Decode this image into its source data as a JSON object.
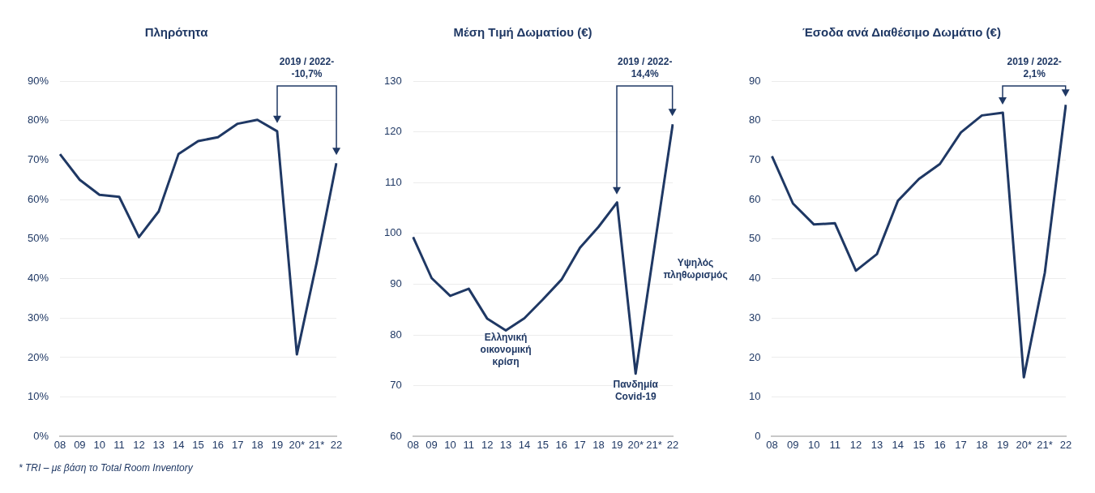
{
  "chart_data": [
    {
      "type": "line",
      "title": "Πληρότητα",
      "categories": [
        "08",
        "09",
        "10",
        "11",
        "12",
        "13",
        "14",
        "15",
        "16",
        "17",
        "18",
        "19",
        "20*",
        "21*",
        "22"
      ],
      "series": [
        {
          "color": "#1f3864",
          "values": [
            71.5,
            65,
            61.2,
            60.7,
            50.5,
            57,
            71.5,
            74.8,
            75.8,
            79.2,
            80.2,
            77.3,
            20.8,
            44,
            69.2
          ]
        }
      ],
      "ylim": [
        0,
        90
      ],
      "yticks": [
        {
          "value": 0,
          "label": "0%"
        },
        {
          "value": 10,
          "label": "10%"
        },
        {
          "value": 20,
          "label": "20%"
        },
        {
          "value": 30,
          "label": "30%"
        },
        {
          "value": 40,
          "label": "40%"
        },
        {
          "value": 50,
          "label": "50%"
        },
        {
          "value": 60,
          "label": "60%"
        },
        {
          "value": 70,
          "label": "70%"
        },
        {
          "value": 80,
          "label": "80%"
        },
        {
          "value": 90,
          "label": "90%"
        }
      ],
      "grid": "y",
      "legend": false,
      "marker": "none",
      "line_style": "solid",
      "annotations": [
        "2019 / 2022-\n-10,7%",
        "* TRI – με βάση το Total Room Inventory"
      ]
    },
    {
      "type": "line",
      "title": "Μέση Τιμή Δωματίου (€)",
      "categories": [
        "08",
        "09",
        "10",
        "11",
        "12",
        "13",
        "14",
        "15",
        "16",
        "17",
        "18",
        "19",
        "20*",
        "21*",
        "22"
      ],
      "series": [
        {
          "color": "#1f3864",
          "values": [
            99.3,
            91.2,
            87.7,
            89.1,
            83.2,
            80.9,
            83.3,
            87,
            90.9,
            97.2,
            101.3,
            106.1,
            72.4,
            97,
            121.5
          ]
        }
      ],
      "ylim": [
        60,
        130
      ],
      "yticks": [
        60,
        70,
        80,
        90,
        100,
        110,
        120,
        130
      ],
      "grid": "y",
      "legend": false,
      "marker": "none",
      "line_style": "solid",
      "annotations": [
        "2019 / 2022-\n14,4%",
        "Ελληνική\nοικονομική\nκρίση",
        "Πανδημία\nCovid-19",
        "Υψηλός\nπληθωρισμός"
      ]
    },
    {
      "type": "line",
      "title": "Έσοδα ανά Διαθέσιμο Δωμάτιο (€)",
      "categories": [
        "08",
        "09",
        "10",
        "11",
        "12",
        "13",
        "14",
        "15",
        "16",
        "17",
        "18",
        "19",
        "20*",
        "21*",
        "22"
      ],
      "series": [
        {
          "color": "#1f3864",
          "values": [
            71,
            59,
            53.7,
            54,
            42,
            46.2,
            59.7,
            65.2,
            69,
            77,
            81.3,
            82,
            15,
            41.5,
            84
          ]
        }
      ],
      "ylim": [
        0,
        90
      ],
      "yticks": [
        0,
        10,
        20,
        30,
        40,
        50,
        60,
        70,
        80,
        90
      ],
      "grid": "y",
      "legend": false,
      "marker": "none",
      "line_style": "solid",
      "annotations": [
        "2019 / 2022-\n2,1%"
      ]
    }
  ]
}
